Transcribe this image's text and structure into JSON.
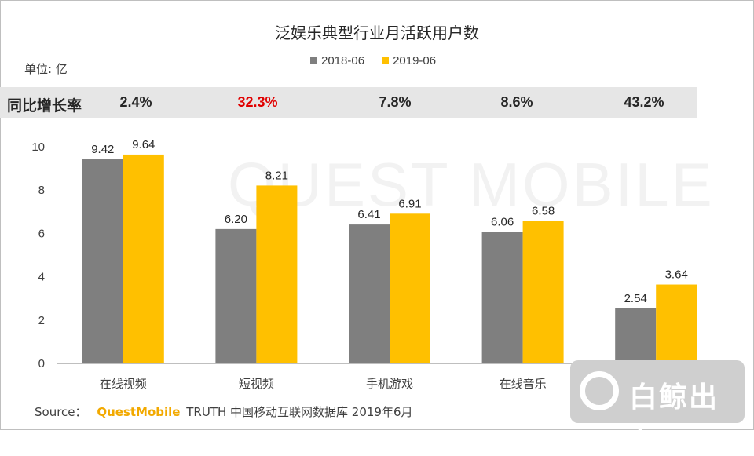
{
  "title": "泛娱乐典型行业月活跃用户数",
  "unit_label": "单位: 亿",
  "yoy": {
    "label": "同比增长率",
    "values": [
      "2.4%",
      "32.3%",
      "7.8%",
      "8.6%",
      "43.2%"
    ]
  },
  "source": {
    "prefix": "Source：",
    "brand": "QuestMobile",
    "rest": "TRUTH 中国移动互联网数据库 2019年6月"
  },
  "watermark": {
    "text": "QUEST MOBILE",
    "logo_text": "白鲸出海"
  },
  "colors": {
    "series_2018": "#7f7f7f",
    "series_2019": "#ffc000",
    "highlight_red": "#e00000"
  },
  "chart_data": {
    "type": "bar",
    "categories": [
      "在线视频",
      "短视频",
      "手机游戏",
      "在线音乐",
      ""
    ],
    "series": [
      {
        "name": "2018-06",
        "values": [
          9.42,
          6.2,
          6.41,
          6.06,
          2.54
        ],
        "labels": [
          "9.42",
          "6.20",
          "6.41",
          "6.06",
          "2.54"
        ]
      },
      {
        "name": "2019-06",
        "values": [
          9.64,
          8.21,
          6.91,
          6.58,
          3.64
        ],
        "labels": [
          "9.64",
          "8.21",
          "6.91",
          "6.58",
          "3.64"
        ]
      }
    ],
    "ylim": [
      0,
      10
    ],
    "yticks": [
      "0",
      "2",
      "4",
      "6",
      "8",
      "10"
    ],
    "legend": "top-center",
    "grid": false
  }
}
